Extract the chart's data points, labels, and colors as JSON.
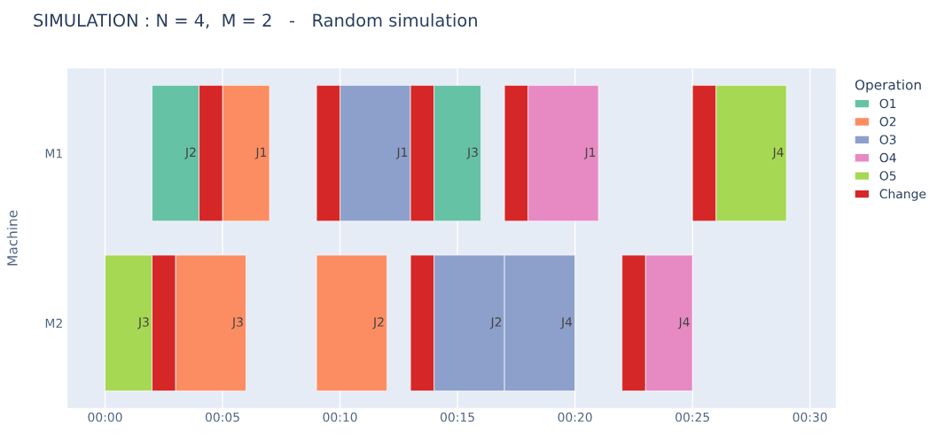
{
  "chart_data": {
    "type": "bar",
    "orientation": "horizontal",
    "title": "SIMULATION : N = 4,  M = 2   -   Random simulation",
    "ylabel": "Machine",
    "legend_title": "Operation",
    "legend": "top right",
    "grid": "x",
    "categories": [
      "M1",
      "M2"
    ],
    "xlim": [
      -1.6,
      31.1
    ],
    "xticks": [
      {
        "value": 0,
        "label": "00:00"
      },
      {
        "value": 5,
        "label": "00:05"
      },
      {
        "value": 10,
        "label": "00:10"
      },
      {
        "value": 15,
        "label": "00:15"
      },
      {
        "value": 20,
        "label": "00:20"
      },
      {
        "value": 25,
        "label": "00:25"
      },
      {
        "value": 30,
        "label": "00:30"
      }
    ],
    "series": [
      {
        "name": "O1",
        "color": "#66c2a5",
        "base": [
          2,
          null
        ],
        "values": [
          2,
          null
        ],
        "value_labels": [
          "J2",
          null
        ]
      },
      {
        "name": "O2",
        "color": "#fc8d62",
        "base": [
          5,
          3
        ],
        "values": [
          2,
          3
        ],
        "value_labels": [
          "J1",
          "J3"
        ]
      },
      {
        "name": "O3",
        "color": "#8da0cb",
        "base": [
          10,
          14
        ],
        "values": [
          3,
          3
        ],
        "value_labels": [
          "J1",
          "J2"
        ]
      },
      {
        "name": "O4",
        "color": "#e78ac3",
        "base": [
          18,
          23
        ],
        "values": [
          3,
          2
        ],
        "value_labels": [
          "J1",
          "J4"
        ]
      },
      {
        "name": "O5",
        "color": "#a6d854",
        "base": [
          26,
          0
        ],
        "values": [
          3,
          2
        ],
        "value_labels": [
          "J4",
          "J3"
        ]
      },
      {
        "name": "Change",
        "color": "#d62728",
        "base": [
          4,
          2
        ],
        "values": [
          1,
          1
        ]
      },
      {
        "color": "#66c2a5",
        "base": [
          14,
          null
        ],
        "values": [
          2,
          null
        ],
        "value_labels": [
          "J3",
          null
        ]
      },
      {
        "color": "#fc8d62",
        "base": [
          null,
          9
        ],
        "values": [
          null,
          3
        ],
        "value_labels": [
          null,
          "J2"
        ]
      },
      {
        "color": "#8da0cb",
        "base": [
          null,
          17
        ],
        "values": [
          null,
          3
        ],
        "value_labels": [
          null,
          "J4"
        ]
      },
      {
        "color": "#d62728",
        "base": [
          9,
          13
        ],
        "values": [
          1,
          1
        ]
      },
      {
        "color": "#d62728",
        "base": [
          13,
          22
        ],
        "values": [
          1,
          1
        ]
      },
      {
        "color": "#d62728",
        "base": [
          17,
          null
        ],
        "values": [
          1,
          null
        ]
      },
      {
        "color": "#d62728",
        "base": [
          25,
          null
        ],
        "values": [
          1,
          null
        ]
      }
    ]
  }
}
